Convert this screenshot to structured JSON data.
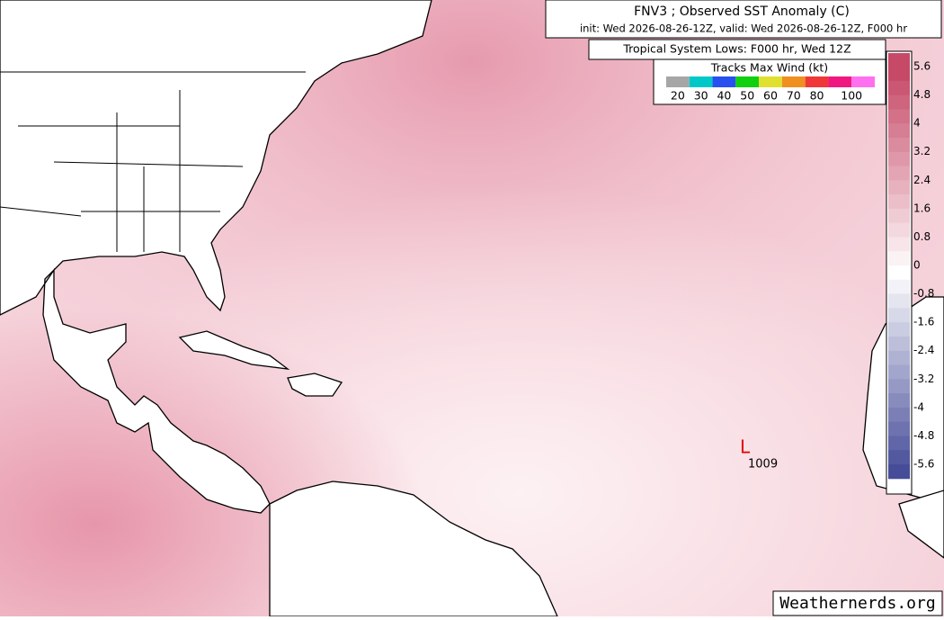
{
  "header": {
    "title": "FNV3 ; Observed SST Anomaly (C)",
    "subtitle": "init: Wed 2026-08-26-12Z, valid: Wed 2026-08-26-12Z, F000 hr"
  },
  "lows_legend": {
    "title": "Tropical System Lows: F000 hr, Wed 12Z"
  },
  "wind_legend": {
    "title": "Tracks Max Wind (kt)",
    "colors": [
      "#a6a6a6",
      "#00c8c8",
      "#2850f0",
      "#10d010",
      "#e0e030",
      "#f09020",
      "#f03838",
      "#f01880",
      "#ff70f0"
    ],
    "labels": [
      20,
      30,
      40,
      50,
      60,
      70,
      80,
      100
    ]
  },
  "colorbar": {
    "ticks": [
      5.6,
      4.8,
      4,
      3.2,
      2.4,
      1.6,
      0.8,
      0,
      -0.8,
      -1.6,
      -2.4,
      -3.2,
      -4,
      -4.8,
      -5.6
    ],
    "warm_color": "#c64a68",
    "cold_color": "#464c98"
  },
  "lows": [
    {
      "symbol": "L",
      "pressure": 1009
    }
  ],
  "watermark": "Weathernerds.org"
}
